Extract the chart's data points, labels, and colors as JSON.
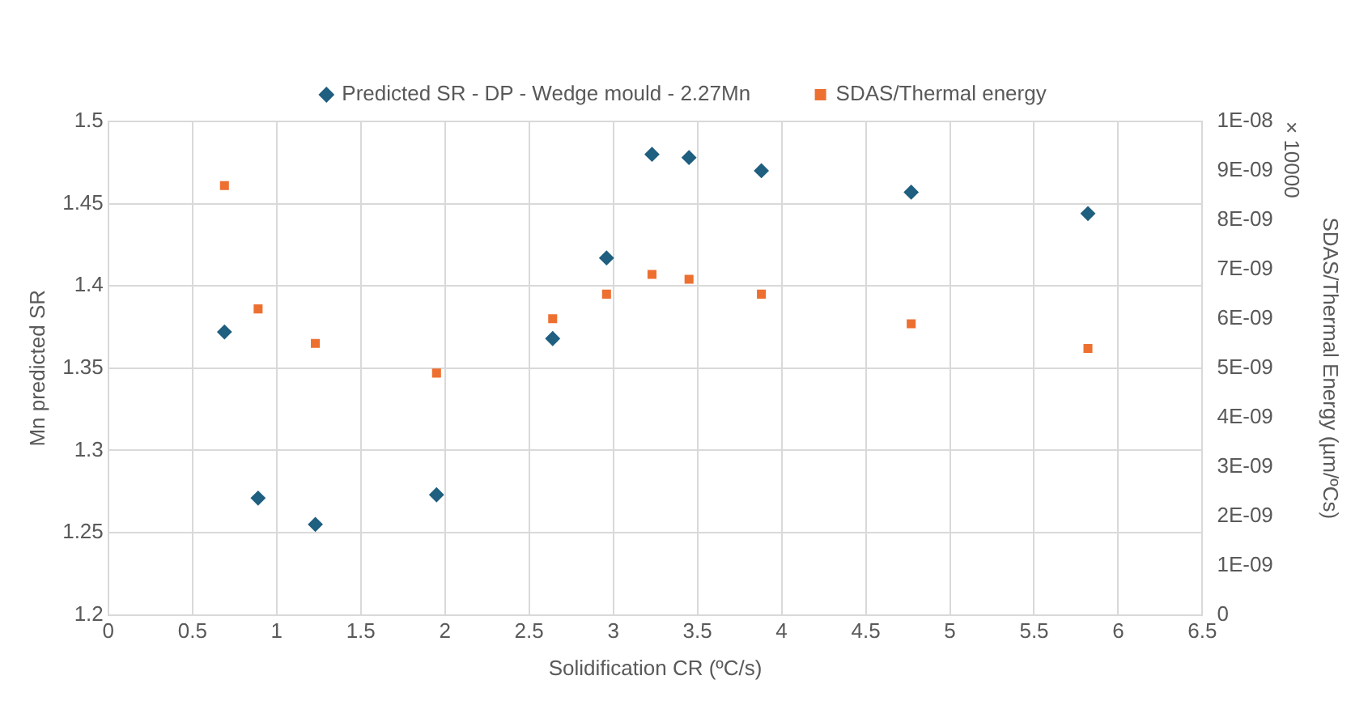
{
  "chart_data": {
    "type": "scatter",
    "xlabel": "Solidification CR (ºC/s)",
    "ylabel": "Mn predicted SR",
    "y2label": "SDAS/Thermal Energy (µm/ºCs)",
    "annotations": [
      "× 10000"
    ],
    "series": [
      {
        "name": "Predicted SR - DP - Wedge mould - 2.27Mn",
        "color": "#1f5f80",
        "marker": "diamond",
        "x": [
          0.69,
          0.89,
          1.23,
          1.95,
          2.64,
          2.96,
          3.23,
          3.45,
          3.88,
          4.77,
          5.82
        ],
        "values": [
          1.372,
          1.271,
          1.255,
          1.273,
          1.368,
          1.417,
          1.48,
          1.478,
          1.47,
          1.457,
          1.444
        ]
      },
      {
        "name": "SDAS/Thermal energy",
        "color": "#ed7031",
        "marker": "square",
        "axis": "y2",
        "x": [
          0.69,
          0.89,
          1.23,
          1.95,
          2.64,
          2.96,
          3.23,
          3.45,
          3.88,
          4.77,
          5.82
        ],
        "values": [
          8.7e-09,
          6.2e-09,
          5.5e-09,
          4.9e-09,
          6e-09,
          6.5e-09,
          6.9e-09,
          6.8e-09,
          6.5e-09,
          5.9e-09,
          5.4e-09
        ]
      }
    ],
    "xlim": [
      0,
      6.5
    ],
    "xticks": [
      0,
      0.5,
      1,
      1.5,
      2,
      2.5,
      3,
      3.5,
      4,
      4.5,
      5,
      5.5,
      6,
      6.5
    ],
    "ylim": [
      1.2,
      1.5
    ],
    "yticks": [
      1.2,
      1.25,
      1.3,
      1.35,
      1.4,
      1.45,
      1.5
    ],
    "y2lim": [
      0,
      1e-08
    ],
    "y2ticks": [
      0,
      {
        "value": 1e-09,
        "label": "1E-09"
      },
      {
        "value": 2e-09,
        "label": "2E-09"
      },
      {
        "value": 3e-09,
        "label": "3E-09"
      },
      {
        "value": 4e-09,
        "label": "4E-09"
      },
      {
        "value": 5e-09,
        "label": "5E-09"
      },
      {
        "value": 6e-09,
        "label": "6E-09"
      },
      {
        "value": 7e-09,
        "label": "7E-09"
      },
      {
        "value": 8e-09,
        "label": "8E-09"
      },
      {
        "value": 9e-09,
        "label": "9E-09"
      },
      {
        "value": 1e-08,
        "label": "1E-08"
      }
    ],
    "grid": true,
    "legend": "top"
  }
}
